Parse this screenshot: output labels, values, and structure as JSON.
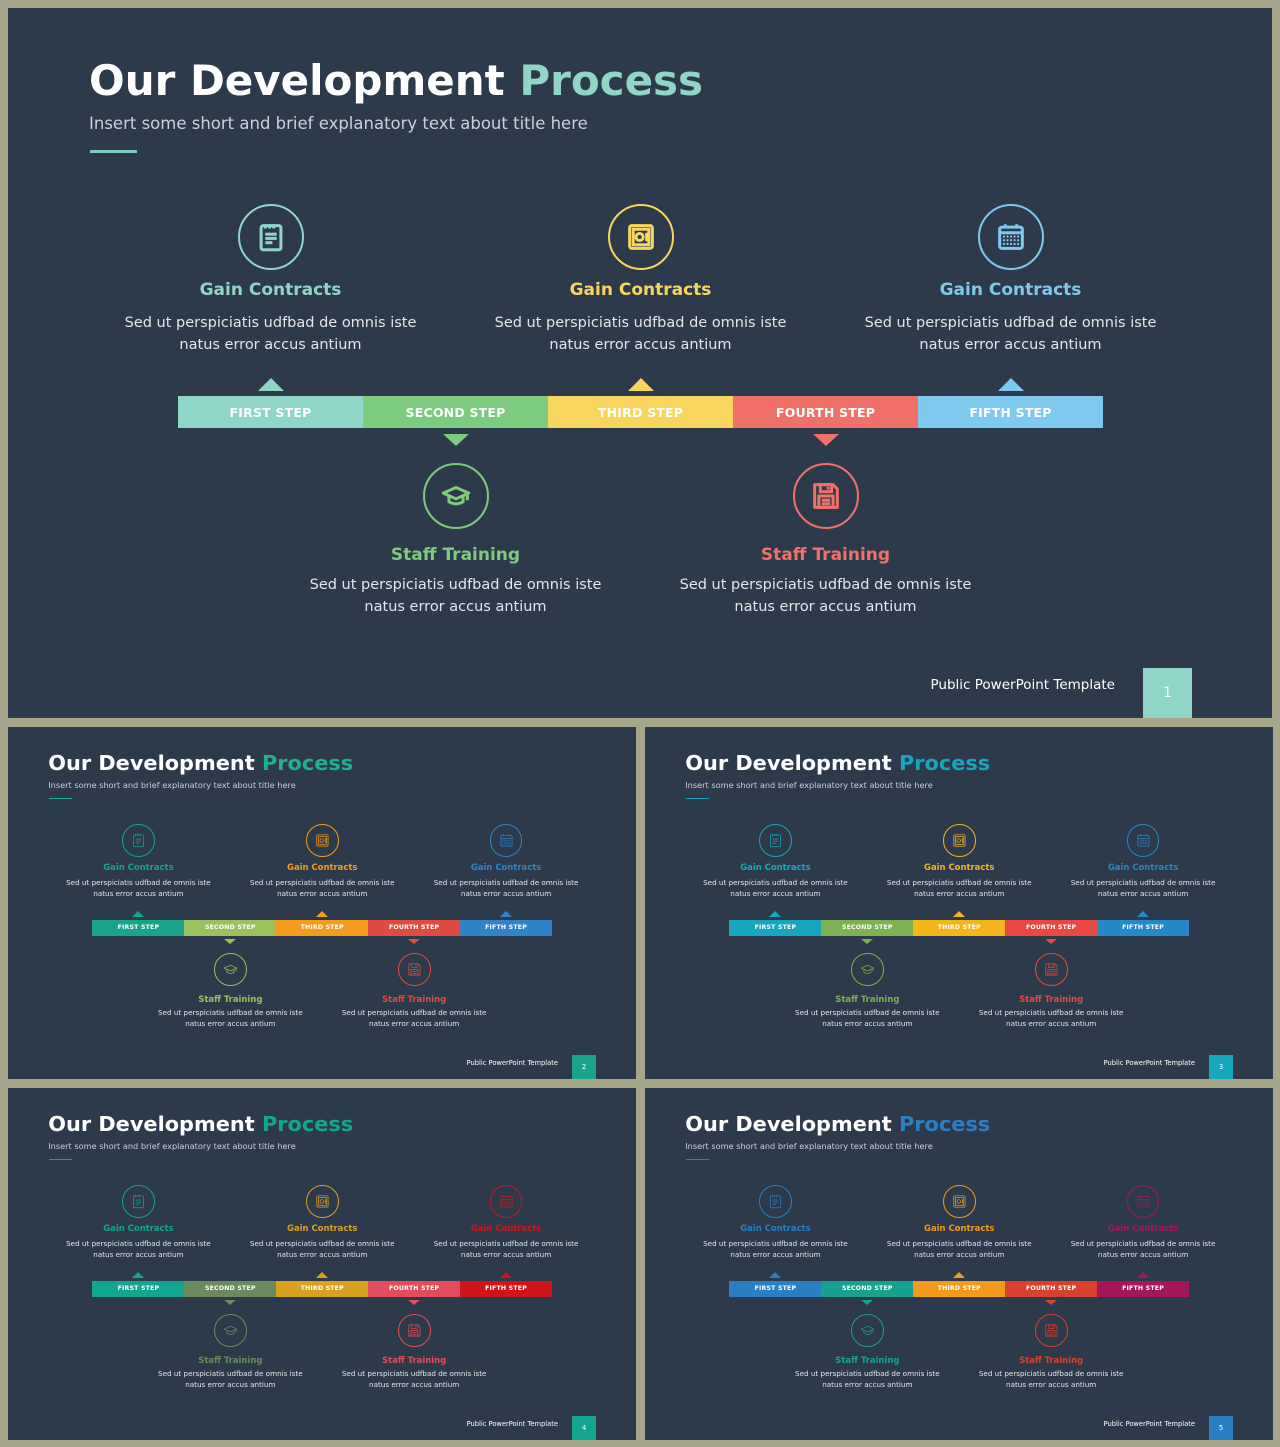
{
  "slides": [
    {
      "title_main": "Our Development",
      "title_accent": "Process",
      "subtitle": "Insert some short and brief explanatory text about title here",
      "accent_color": "#8fd6c9",
      "line_color": "#7fcbbf",
      "steps": [
        {
          "label": "FIRST  STEP",
          "color": "#8fd6c9"
        },
        {
          "label": "SECOND  STEP",
          "color": "#7dcb7e"
        },
        {
          "label": "THIRD  STEP",
          "color": "#f8d65d"
        },
        {
          "label": "FOURTH  STEP",
          "color": "#f0716a"
        },
        {
          "label": "FIFTH  STEP",
          "color": "#7fc8ee"
        }
      ],
      "top_items": [
        {
          "title": "Gain Contracts",
          "color": "#8fd6c9",
          "icon": "notepad-icon",
          "line1": "Sed ut perspiciatis udfbad de omnis iste",
          "line2": "natus error accus antium"
        },
        {
          "title": "Gain Contracts",
          "color": "#f8d65d",
          "icon": "safe-icon",
          "line1": "Sed ut perspiciatis udfbad de omnis iste",
          "line2": "natus error accus antium"
        },
        {
          "title": "Gain Contracts",
          "color": "#7fc8ee",
          "icon": "calendar-icon",
          "line1": "Sed ut perspiciatis udfbad de omnis iste",
          "line2": "natus error accus antium"
        }
      ],
      "bottom_items": [
        {
          "title": "Staff Training",
          "color": "#7dcb7e",
          "icon": "graduation-cap-icon",
          "line1": "Sed ut perspiciatis udfbad de omnis iste",
          "line2": "natus error accus antium"
        },
        {
          "title": "Staff Training",
          "color": "#f0716a",
          "icon": "floppy-disk-icon",
          "line1": "Sed ut perspiciatis udfbad de omnis iste",
          "line2": "natus error accus antium"
        }
      ],
      "footer": "Public PowerPoint Template",
      "page": "1",
      "page_color": "#8fd6c9"
    },
    {
      "title_main": "Our Development",
      "title_accent": "Process",
      "subtitle": "Insert some short and brief explanatory text about title here",
      "accent_color": "#1fb08e",
      "line_color": "#1fb08e",
      "steps": [
        {
          "label": "FIRST  STEP",
          "color": "#17a48b"
        },
        {
          "label": "SECOND  STEP",
          "color": "#9ac25a"
        },
        {
          "label": "THIRD  STEP",
          "color": "#f39c1f"
        },
        {
          "label": "FOURTH  STEP",
          "color": "#df4b3e"
        },
        {
          "label": "FIFTH  STEP",
          "color": "#2f84c7"
        }
      ],
      "top_items": [
        {
          "title": "Gain Contracts",
          "color": "#17a48b",
          "icon": "notepad-icon",
          "line1": "Sed ut perspiciatis udfbad de omnis iste",
          "line2": "natus error accus antium"
        },
        {
          "title": "Gain Contracts",
          "color": "#f39c1f",
          "icon": "safe-icon",
          "line1": "Sed ut perspiciatis udfbad de omnis iste",
          "line2": "natus error accus antium"
        },
        {
          "title": "Gain Contracts",
          "color": "#2f84c7",
          "icon": "calendar-icon",
          "line1": "Sed ut perspiciatis udfbad de omnis iste",
          "line2": "natus error accus antium"
        }
      ],
      "bottom_items": [
        {
          "title": "Staff Training",
          "color": "#9ac25a",
          "icon": "graduation-cap-icon",
          "line1": "Sed ut perspiciatis udfbad de omnis iste",
          "line2": "natus error accus antium"
        },
        {
          "title": "Staff Training",
          "color": "#df4b3e",
          "icon": "floppy-disk-icon",
          "line1": "Sed ut perspiciatis udfbad de omnis iste",
          "line2": "natus error accus antium"
        }
      ],
      "footer": "Public PowerPoint Template",
      "page": "2",
      "page_color": "#17a48b"
    },
    {
      "title_main": "Our Development",
      "title_accent": "Process",
      "subtitle": "Insert some short and brief explanatory text about title here",
      "accent_color": "#16a7bd",
      "line_color": "#16a7bd",
      "steps": [
        {
          "label": "FIRST  STEP",
          "color": "#16a7bd"
        },
        {
          "label": "SECOND  STEP",
          "color": "#7cb24f"
        },
        {
          "label": "THIRD  STEP",
          "color": "#f5b41c"
        },
        {
          "label": "FOURTH  STEP",
          "color": "#e8483f"
        },
        {
          "label": "FIFTH  STEP",
          "color": "#2588c9"
        }
      ],
      "top_items": [
        {
          "title": "Gain Contracts",
          "color": "#16a7bd",
          "icon": "notepad-icon",
          "line1": "Sed ut perspiciatis udfbad de omnis iste",
          "line2": "natus error accus antium"
        },
        {
          "title": "Gain Contracts",
          "color": "#f5b41c",
          "icon": "safe-icon",
          "line1": "Sed ut perspiciatis udfbad de omnis iste",
          "line2": "natus error accus antium"
        },
        {
          "title": "Gain Contracts",
          "color": "#2588c9",
          "icon": "calendar-icon",
          "line1": "Sed ut perspiciatis udfbad de omnis iste",
          "line2": "natus error accus antium"
        }
      ],
      "bottom_items": [
        {
          "title": "Staff Training",
          "color": "#7cb24f",
          "icon": "graduation-cap-icon",
          "line1": "Sed ut perspiciatis udfbad de omnis iste",
          "line2": "natus error accus antium"
        },
        {
          "title": "Staff Training",
          "color": "#e8483f",
          "icon": "floppy-disk-icon",
          "line1": "Sed ut perspiciatis udfbad de omnis iste",
          "line2": "natus error accus antium"
        }
      ],
      "footer": "Public PowerPoint Template",
      "page": "3",
      "page_color": "#16a7bd"
    },
    {
      "title_main": "Our Development",
      "title_accent": "Process",
      "subtitle": "Insert some short and brief explanatory text about title here",
      "accent_color": "#12a58f",
      "line_color": "#12a58f",
      "steps": [
        {
          "label": "FIRST  STEP",
          "color": "#12a58f"
        },
        {
          "label": "SECOND  STEP",
          "color": "#6b8a5e"
        },
        {
          "label": "THIRD  STEP",
          "color": "#d9a21e"
        },
        {
          "label": "FOURTH  STEP",
          "color": "#e24c5b"
        },
        {
          "label": "FIFTH  STEP",
          "color": "#d0141a"
        }
      ],
      "top_items": [
        {
          "title": "Gain Contracts",
          "color": "#12a58f",
          "icon": "notepad-icon",
          "line1": "Sed ut perspiciatis udfbad de omnis iste",
          "line2": "natus error accus antium"
        },
        {
          "title": "Gain Contracts",
          "color": "#d9a21e",
          "icon": "safe-icon",
          "line1": "Sed ut perspiciatis udfbad de omnis iste",
          "line2": "natus error accus antium"
        },
        {
          "title": "Gain Contracts",
          "color": "#d0141a",
          "icon": "calendar-icon",
          "line1": "Sed ut perspiciatis udfbad de omnis iste",
          "line2": "natus error accus antium"
        }
      ],
      "bottom_items": [
        {
          "title": "Staff Training",
          "color": "#6b8a5e",
          "icon": "graduation-cap-icon",
          "line1": "Sed ut perspiciatis udfbad de omnis iste",
          "line2": "natus error accus antium"
        },
        {
          "title": "Staff Training",
          "color": "#e24c5b",
          "icon": "floppy-disk-icon",
          "line1": "Sed ut perspiciatis udfbad de omnis iste",
          "line2": "natus error accus antium"
        }
      ],
      "footer": "Public PowerPoint Template",
      "page": "4",
      "page_color": "#12a58f"
    },
    {
      "title_main": "Our Development",
      "title_accent": "Process",
      "subtitle": "Insert some short and brief explanatory text about title here",
      "accent_color": "#2a7fc2",
      "line_color": "#2a7fc2",
      "steps": [
        {
          "label": "FIRST  STEP",
          "color": "#2a7fc2"
        },
        {
          "label": "SECOND  STEP",
          "color": "#18a28e"
        },
        {
          "label": "THIRD  STEP",
          "color": "#f29a1c"
        },
        {
          "label": "FOURTH  STEP",
          "color": "#d8412e"
        },
        {
          "label": "FIFTH  STEP",
          "color": "#a4185a"
        }
      ],
      "top_items": [
        {
          "title": "Gain Contracts",
          "color": "#2a7fc2",
          "icon": "notepad-icon",
          "line1": "Sed ut perspiciatis udfbad de omnis iste",
          "line2": "natus error accus antium"
        },
        {
          "title": "Gain Contracts",
          "color": "#f29a1c",
          "icon": "safe-icon",
          "line1": "Sed ut perspiciatis udfbad de omnis iste",
          "line2": "natus error accus antium"
        },
        {
          "title": "Gain Contracts",
          "color": "#a4185a",
          "icon": "calendar-icon",
          "line1": "Sed ut perspiciatis udfbad de omnis iste",
          "line2": "natus error accus antium"
        }
      ],
      "bottom_items": [
        {
          "title": "Staff Training",
          "color": "#18a28e",
          "icon": "graduation-cap-icon",
          "line1": "Sed ut perspiciatis udfbad de omnis iste",
          "line2": "natus error accus antium"
        },
        {
          "title": "Staff Training",
          "color": "#d8412e",
          "icon": "floppy-disk-icon",
          "line1": "Sed ut perspiciatis udfbad de omnis iste",
          "line2": "natus error accus antium"
        }
      ],
      "footer": "Public PowerPoint Template",
      "page": "5",
      "page_color": "#2a7fc2"
    }
  ]
}
